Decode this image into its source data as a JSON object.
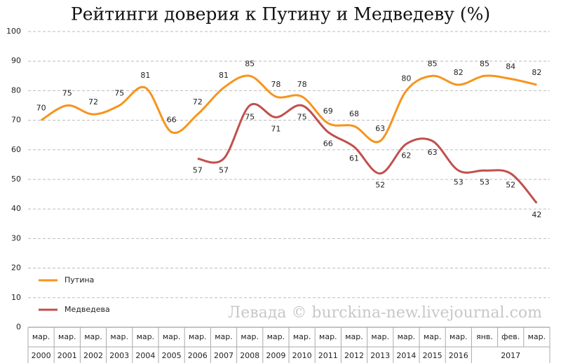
{
  "chart_data": {
    "type": "line",
    "title": "Рейтинги доверия к Путину и Медведеву (%)",
    "annotation": "Левада © burckina-new.livejournal.com",
    "categories": [
      "мар.",
      "мар.",
      "мар.",
      "мар.",
      "мар.",
      "мар.",
      "мар.",
      "мар.",
      "мар.",
      "мар.",
      "мар.",
      "мар.",
      "мар.",
      "мар.",
      "мар.",
      "мар.",
      "мар.",
      "янв.",
      "фев.",
      "мар."
    ],
    "years": [
      "2000",
      "2001",
      "2002",
      "2003",
      "2004",
      "2005",
      "2006",
      "2007",
      "2008",
      "2009",
      "2010",
      "2011",
      "2012",
      "2013",
      "2014",
      "2015",
      "2016",
      null,
      "2017",
      null
    ],
    "series": [
      {
        "name": "Путина",
        "color": "#f7941d",
        "values": [
          70,
          75,
          72,
          75,
          81,
          66,
          72,
          81,
          85,
          78,
          78,
          69,
          68,
          63,
          80,
          85,
          82,
          85,
          84,
          82
        ]
      },
      {
        "name": "Медведева",
        "color": "#c0504d",
        "values": [
          null,
          null,
          null,
          null,
          null,
          null,
          57,
          57,
          75,
          71,
          75,
          66,
          61,
          52,
          62,
          63,
          53,
          53,
          52,
          42
        ]
      }
    ],
    "ylim": [
      0,
      100
    ],
    "yticks": [
      0,
      10,
      20,
      30,
      40,
      50,
      60,
      70,
      80,
      90,
      100
    ],
    "grid": true,
    "legend": "lower left"
  }
}
